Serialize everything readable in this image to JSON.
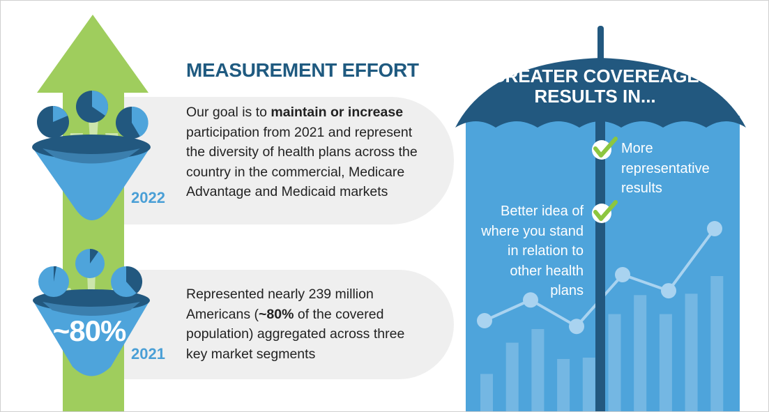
{
  "left": {
    "heading": "MEASUREMENT EFFORT",
    "item_2022": {
      "year": "2022",
      "text_1": "Our goal is to ",
      "bold_1": "maintain or increase",
      "text_2": " participation from 2021 and represent the diversity of health plans across the country in the commercial, Medicare Advantage and Medicaid markets"
    },
    "item_2021": {
      "year": "2021",
      "big_value": "~80%",
      "text_1": "Represented nearly 239 million Americans (",
      "bold_1": "~80%",
      "text_2": " of the covered population) aggregated across three key market segments"
    }
  },
  "right": {
    "title_line1": "GREATER COVEREAGE",
    "title_line2": "RESULTS IN...",
    "benefits": [
      {
        "lines": [
          "More",
          "representative",
          "results"
        ],
        "icon": "check-icon"
      },
      {
        "lines": [
          "Better idea of",
          "where you stand",
          "in relation to",
          "other health",
          "plans"
        ],
        "icon": "check-icon"
      }
    ],
    "decor_bars": [
      0.28,
      0.51,
      0.61,
      0.39,
      0.4,
      0.72,
      0.86,
      0.72,
      0.87,
      1.0
    ],
    "decor_line": [
      0.6,
      0.78,
      0.55,
      1.0,
      0.86,
      1.4
    ]
  },
  "colors": {
    "green": "#9fcd5d",
    "navy": "#22587f",
    "mid_blue": "#3f8fc8",
    "light_blue": "#4ea4db",
    "panel_gray": "#efefef",
    "heading": "#1f5a80",
    "year": "#4a9fd6"
  }
}
